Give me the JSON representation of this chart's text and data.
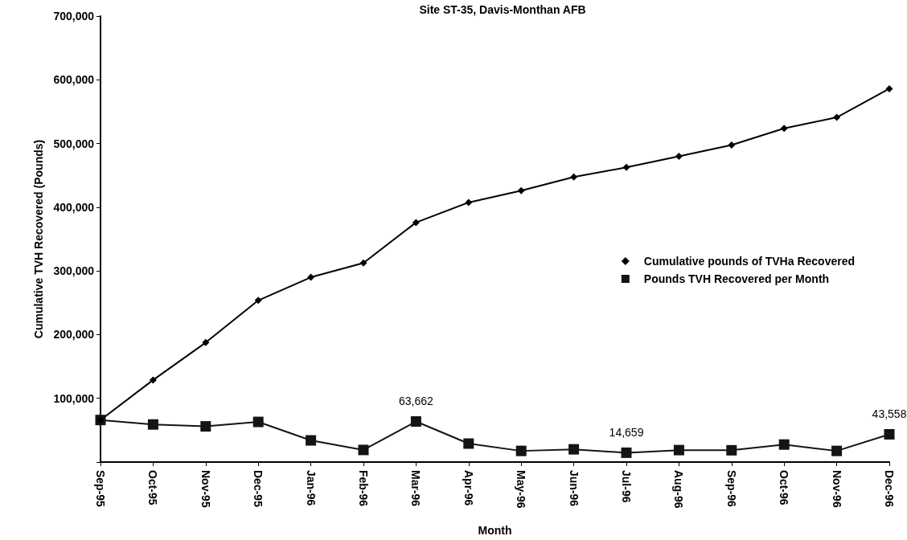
{
  "chart_data": {
    "type": "line",
    "title": "Site ST-35, Davis-Monthan AFB",
    "xlabel": "Month",
    "ylabel": "Cumulative TVH Recovered (Pounds)",
    "categories": [
      "Sep-95",
      "Oct-95",
      "Nov-95",
      "Dec-95",
      "Jan-96",
      "Feb-96",
      "Mar-96",
      "Apr-96",
      "May-96",
      "Jun-96",
      "Jul-96",
      "Aug-96",
      "Sep-96",
      "Oct-96",
      "Nov-96",
      "Dec-96"
    ],
    "series": [
      {
        "name": "Cumulative pounds of TVHa Recovered",
        "color": "#000000",
        "marker": "diamond",
        "values": [
          66000,
          128750,
          187500,
          253750,
          290000,
          312500,
          376000,
          407500,
          426000,
          447500,
          462500,
          480000,
          497500,
          523750,
          541000,
          586000
        ]
      },
      {
        "name": "Pounds TVH Recovered per Month",
        "color": "#141414",
        "marker": "square",
        "values": [
          66000,
          59000,
          56000,
          63000,
          34000,
          19000,
          63662,
          29000,
          17500,
          20000,
          14659,
          18750,
          18500,
          27500,
          17500,
          43558
        ],
        "value_labels": [
          null,
          null,
          null,
          null,
          null,
          null,
          "63,662",
          null,
          null,
          null,
          "14,659",
          null,
          null,
          null,
          null,
          "43,558"
        ]
      }
    ],
    "ylim": [
      0,
      700000
    ],
    "yticks": [
      {
        "value": 0,
        "label": null
      },
      "100,000",
      "200,000",
      "300,000",
      "400,000",
      "500,000",
      "600,000",
      "700,000"
    ],
    "grid": false,
    "legend": "right",
    "line_style": "solid"
  }
}
